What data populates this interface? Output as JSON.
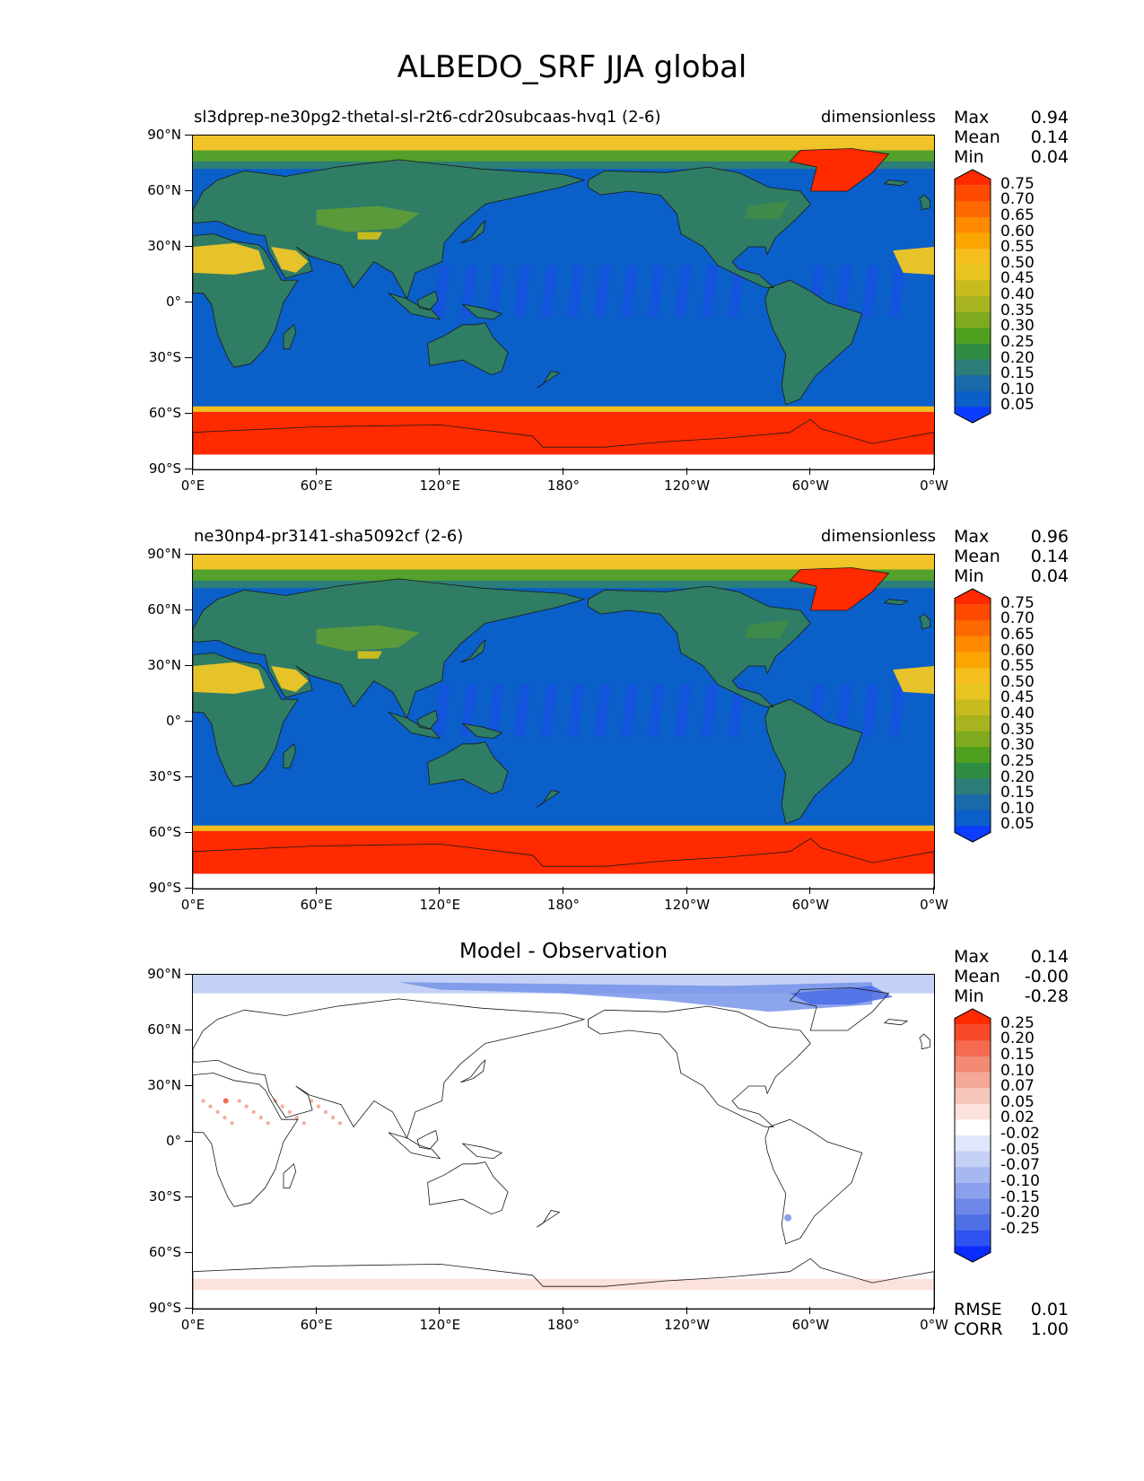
{
  "title": "ALBEDO_SRF JJA global",
  "colors": {
    "ocean": "#0a5fc9",
    "land_low": "#2f7d64",
    "land_mid": "#5a9a3a",
    "desert": "#e6c22b",
    "ice": "#ff2a00",
    "polar": "#f0c428",
    "diff_white": "#ffffff",
    "diff_blue": "#6f8fe8",
    "diff_red": "#f5b0a0"
  },
  "chart_data": [
    {
      "type": "heatmap",
      "title_left": "sl3dprep-ne30pg2-thetal-sl-r2t6-cdr20subcaas-hvq1 (2-6)",
      "title_right": "dimensionless",
      "yticks": [
        "90°N",
        "60°N",
        "30°N",
        "0°",
        "30°S",
        "60°S",
        "90°S"
      ],
      "xticks": [
        "0°E",
        "60°E",
        "120°E",
        "180°",
        "120°W",
        "60°W",
        "0°W"
      ],
      "stats": {
        "max_label": "Max",
        "max": "0.94",
        "mean_label": "Mean",
        "mean": "0.14",
        "min_label": "Min",
        "min": "0.04"
      },
      "colorbar_levels": [
        "0.75",
        "0.70",
        "0.65",
        "0.60",
        "0.55",
        "0.50",
        "0.45",
        "0.40",
        "0.35",
        "0.30",
        "0.25",
        "0.20",
        "0.15",
        "0.10",
        "0.05"
      ],
      "colorbar_colors": [
        "#ff2a00",
        "#ff4a00",
        "#ff6a00",
        "#ff8a00",
        "#fba500",
        "#f5be1e",
        "#e8c420",
        "#c8bb20",
        "#a7b31f",
        "#7faa1f",
        "#4fa01f",
        "#2f8c43",
        "#2c7e78",
        "#1a69a8",
        "#0a5fc9",
        "#0b3cff"
      ],
      "xlim": [
        0,
        360
      ],
      "ylim": [
        -90,
        90
      ]
    },
    {
      "type": "heatmap",
      "title_left": "ne30np4-pr3141-sha5092cf (2-6)",
      "title_right": "dimensionless",
      "yticks": [
        "90°N",
        "60°N",
        "30°N",
        "0°",
        "30°S",
        "60°S",
        "90°S"
      ],
      "xticks": [
        "0°E",
        "60°E",
        "120°E",
        "180°",
        "120°W",
        "60°W",
        "0°W"
      ],
      "stats": {
        "max_label": "Max",
        "max": "0.96",
        "mean_label": "Mean",
        "mean": "0.14",
        "min_label": "Min",
        "min": "0.04"
      },
      "colorbar_levels": [
        "0.75",
        "0.70",
        "0.65",
        "0.60",
        "0.55",
        "0.50",
        "0.45",
        "0.40",
        "0.35",
        "0.30",
        "0.25",
        "0.20",
        "0.15",
        "0.10",
        "0.05"
      ],
      "colorbar_colors": [
        "#ff2a00",
        "#ff4a00",
        "#ff6a00",
        "#ff8a00",
        "#fba500",
        "#f5be1e",
        "#e8c420",
        "#c8bb20",
        "#a7b31f",
        "#7faa1f",
        "#4fa01f",
        "#2f8c43",
        "#2c7e78",
        "#1a69a8",
        "#0a5fc9",
        "#0b3cff"
      ],
      "xlim": [
        0,
        360
      ],
      "ylim": [
        -90,
        90
      ]
    },
    {
      "type": "heatmap",
      "title_center": "Model - Observation",
      "yticks": [
        "90°N",
        "60°N",
        "30°N",
        "0°",
        "30°S",
        "60°S",
        "90°S"
      ],
      "xticks": [
        "0°E",
        "60°E",
        "120°E",
        "180°",
        "120°W",
        "60°W",
        "0°W"
      ],
      "stats": {
        "max_label": "Max",
        "max": "0.14",
        "mean_label": "Mean",
        "mean": "-0.00",
        "min_label": "Min",
        "min": "-0.28"
      },
      "colorbar_levels": [
        "0.25",
        "0.20",
        "0.15",
        "0.10",
        "0.07",
        "0.05",
        "0.02",
        "-0.02",
        "-0.05",
        "-0.07",
        "-0.10",
        "-0.15",
        "-0.20",
        "-0.25"
      ],
      "colorbar_colors": [
        "#ff2a00",
        "#f84a2a",
        "#f56a50",
        "#f28a74",
        "#f4a898",
        "#f7c6ba",
        "#fbe2da",
        "#ffffff",
        "#e0e6fb",
        "#c4d0f6",
        "#a7b8f1",
        "#8aa0ec",
        "#6d88e8",
        "#4f6fe6",
        "#2f52f0",
        "#0b2cff"
      ],
      "rmse_label": "RMSE",
      "rmse": "0.01",
      "corr_label": "CORR",
      "corr": "1.00",
      "xlim": [
        0,
        360
      ],
      "ylim": [
        -90,
        90
      ]
    }
  ]
}
